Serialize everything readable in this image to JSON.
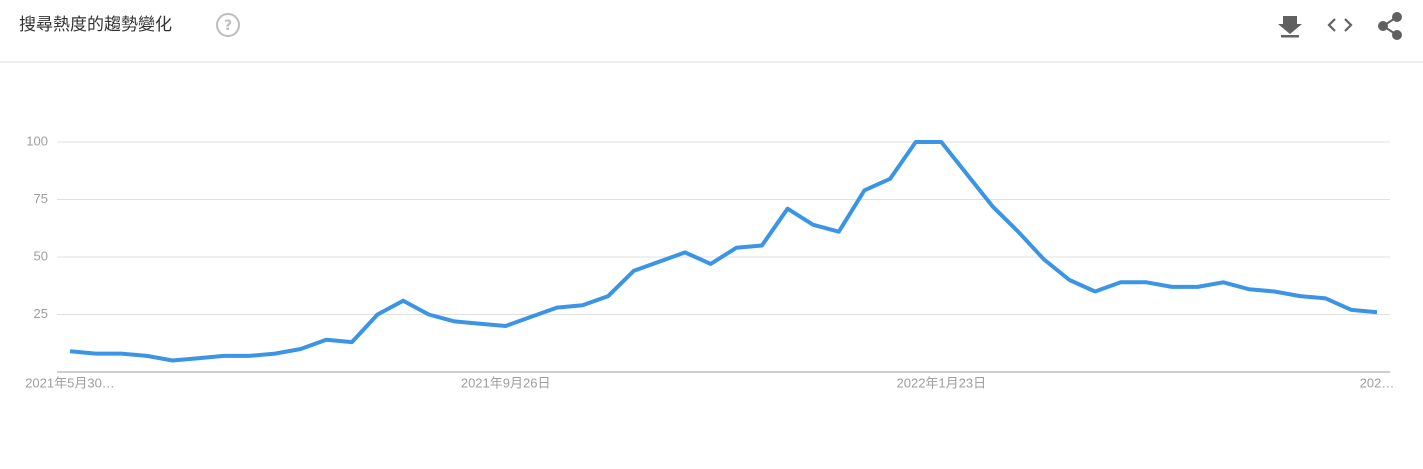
{
  "chart_data": {
    "type": "line",
    "title": "搜尋熱度的趨勢變化",
    "categories": [
      "2021年5月30…",
      null,
      null,
      null,
      null,
      null,
      null,
      null,
      null,
      null,
      null,
      null,
      null,
      null,
      null,
      null,
      null,
      "2021年9月26日",
      null,
      null,
      null,
      null,
      null,
      null,
      null,
      null,
      null,
      null,
      null,
      null,
      null,
      null,
      null,
      null,
      "2022年1月23日",
      null,
      null,
      null,
      null,
      null,
      null,
      null,
      null,
      null,
      null,
      null,
      null,
      null,
      null,
      null,
      null,
      "202…"
    ],
    "values": [
      9,
      8,
      8,
      7,
      5,
      6,
      7,
      7,
      8,
      10,
      14,
      13,
      25,
      31,
      25,
      22,
      21,
      20,
      24,
      28,
      29,
      33,
      44,
      48,
      52,
      47,
      54,
      55,
      71,
      64,
      61,
      79,
      84,
      100,
      100,
      86,
      72,
      61,
      49,
      40,
      35,
      39,
      39,
      37,
      37,
      39,
      36,
      35,
      33,
      32,
      27,
      26
    ],
    "color": "#3b95e4",
    "ylim": [
      0,
      100
    ],
    "yticks": [
      25,
      50,
      75,
      100
    ],
    "grid": true
  }
}
